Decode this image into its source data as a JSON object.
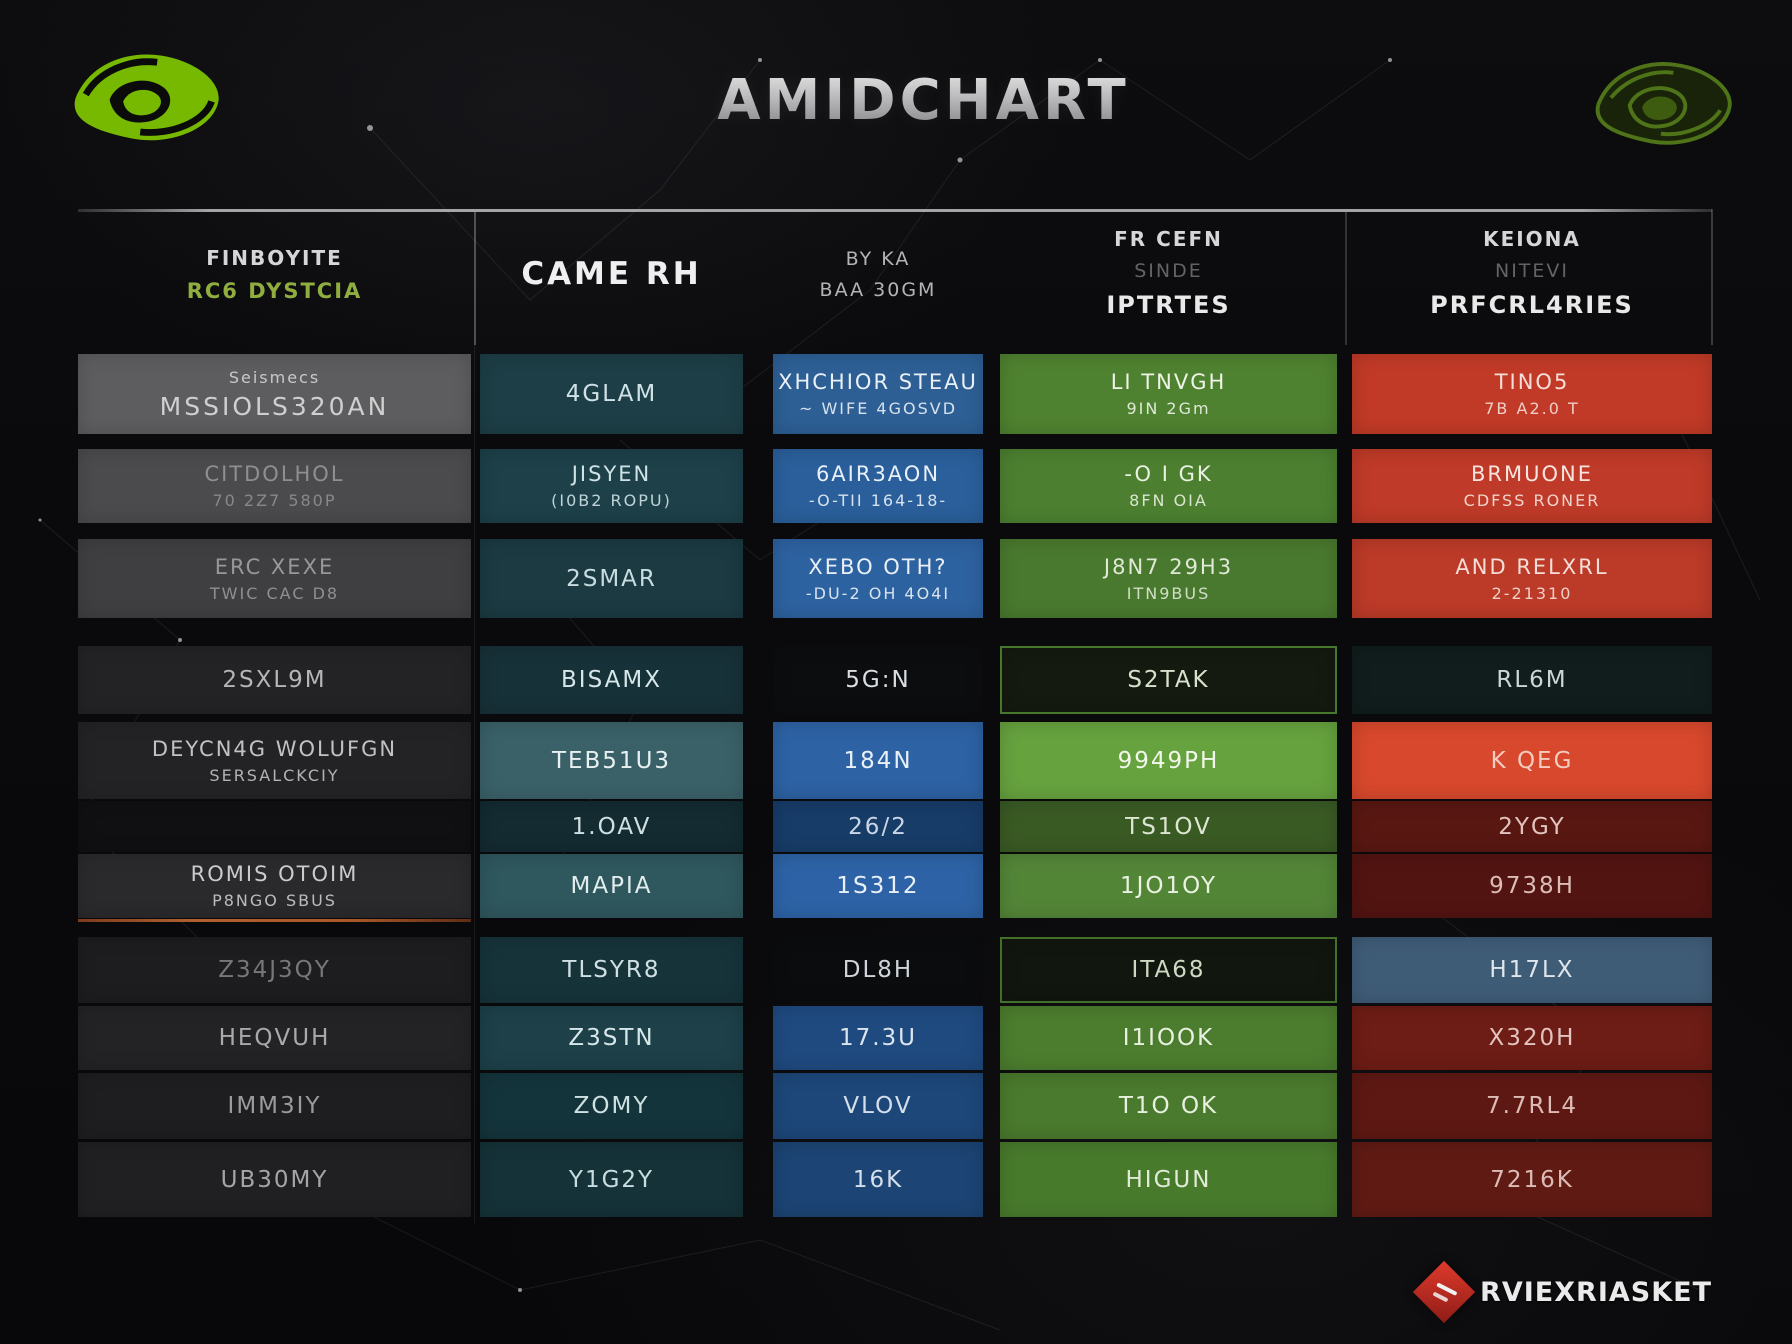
{
  "title": "AMIDCHART",
  "logos": {
    "top_left": "nvidia-eye-logo-green",
    "top_right": "nvidia-eye-logo-dark",
    "footer_icon": "red-diamond-logo"
  },
  "footer": {
    "brand": "RVIEXRIASKET"
  },
  "table": {
    "headers": [
      {
        "lines": [
          {
            "t": "FINBOYITE",
            "cls": "h-white"
          },
          {
            "t": "RC6 DYSTCIA",
            "cls": "h-green"
          }
        ]
      },
      {
        "lines": [
          {
            "t": "CAME RH",
            "cls": "h-big"
          }
        ]
      },
      {
        "lines": [
          {
            "t": "BY KA",
            "cls": "h-gray"
          },
          {
            "t": "BAA 30GM",
            "cls": "h-gray"
          }
        ]
      },
      {
        "lines": [
          {
            "t": "FR CEFN",
            "cls": "h-white"
          },
          {
            "t": "SINDE",
            "cls": "h-dim"
          },
          {
            "t": "IPTRTES",
            "cls": "h-big2"
          }
        ]
      },
      {
        "lines": [
          {
            "t": "KEIONA",
            "cls": "h-white"
          },
          {
            "t": "NITEVI",
            "cls": "h-dim"
          },
          {
            "t": "PRFCRL4RIES",
            "cls": "h-big2"
          }
        ]
      }
    ],
    "cells": [
      {
        "col": 0,
        "row": 0,
        "lines": [
          "Seismecs",
          "MSSIOLS320AN"
        ],
        "bg": "#5d5d60",
        "fg": "#dcdcdc",
        "variant": "first-small"
      },
      {
        "col": 0,
        "row": 1,
        "lines": [
          "CITDOLHOL",
          "70 2Z7 580P"
        ],
        "bg": "#4b4b4e",
        "fg": "#8f8f93"
      },
      {
        "col": 0,
        "row": 2,
        "lines": [
          "ERC XEXE",
          "TWIC CAC D8"
        ],
        "bg": "#3f3f42",
        "fg": "#98989b"
      },
      {
        "col": 0,
        "row": 3,
        "lines": [
          "2SXL9M"
        ],
        "bg": "#232325",
        "fg": "#b5b5b9"
      },
      {
        "col": 0,
        "row": 4,
        "lines": [
          "DEYCN4G WOLUFGN",
          "SERSALCKCIY"
        ],
        "bg": "#232325",
        "fg": "#c2c2c6"
      },
      {
        "col": 0,
        "row": 5,
        "lines": [
          ""
        ],
        "bg": "#101012",
        "fg": "#777"
      },
      {
        "col": 0,
        "row": 6,
        "lines": [
          "ROMIS OTOIM",
          "P8NGO SBUS"
        ],
        "bg": "#2a2a2d",
        "fg": "#cbcbce"
      },
      {
        "col": 0,
        "row": 7,
        "lines": [
          "Z34J3QY"
        ],
        "bg": "#1d1d1f",
        "fg": "#77777b"
      },
      {
        "col": 0,
        "row": 8,
        "lines": [
          "HEQVUH"
        ],
        "bg": "#232326",
        "fg": "#a9a9ad"
      },
      {
        "col": 0,
        "row": 9,
        "lines": [
          "IMM3IY"
        ],
        "bg": "#1e1e21",
        "fg": "#9b9b9f"
      },
      {
        "col": 0,
        "row": 10,
        "lines": [
          "UB30MY"
        ],
        "bg": "#202023",
        "fg": "#a5a5a9"
      },
      {
        "col": 1,
        "row": 0,
        "lines": [
          "4GLAM"
        ],
        "bg": "#1d3e46",
        "fg": "#cfe3e6"
      },
      {
        "col": 1,
        "row": 1,
        "lines": [
          "JISYEN",
          "(I0B2 ROPU)"
        ],
        "bg": "#1d4049",
        "fg": "#cfe3e6"
      },
      {
        "col": 1,
        "row": 2,
        "lines": [
          "2SMAR"
        ],
        "bg": "#1b3a42",
        "fg": "#c8dde0"
      },
      {
        "col": 1,
        "row": 3,
        "lines": [
          "BISAMX"
        ],
        "bg": "#173138",
        "fg": "#d6e7e9"
      },
      {
        "col": 1,
        "row": 4,
        "lines": [
          "TEB51U3"
        ],
        "bg": "#3a6168",
        "fg": "#e8f1f1"
      },
      {
        "col": 1,
        "row": 5,
        "lines": [
          "1.OAV"
        ],
        "bg": "#132b31",
        "fg": "#cfe0e2"
      },
      {
        "col": 1,
        "row": 6,
        "lines": [
          "MAPIA"
        ],
        "bg": "#2f575e",
        "fg": "#e2edee"
      },
      {
        "col": 1,
        "row": 7,
        "lines": [
          "TLSYR8"
        ],
        "bg": "#16333a",
        "fg": "#cfe0e2"
      },
      {
        "col": 1,
        "row": 8,
        "lines": [
          "Z3STN"
        ],
        "bg": "#1d4049",
        "fg": "#d6e7e9"
      },
      {
        "col": 1,
        "row": 9,
        "lines": [
          "ZOMY"
        ],
        "bg": "#14343b",
        "fg": "#cfe0e2"
      },
      {
        "col": 1,
        "row": 10,
        "lines": [
          "Y1G2Y"
        ],
        "bg": "#153238",
        "fg": "#c8dde0"
      },
      {
        "col": 2,
        "row": 0,
        "lines": [
          "XHCHIOR STEAU",
          "~ WIFE 4GOSVD"
        ],
        "bg": "#2d5f95",
        "fg": "#e9f0f7"
      },
      {
        "col": 2,
        "row": 1,
        "lines": [
          "6AIR3AON",
          "-O-TII 164-18-"
        ],
        "bg": "#2a5f9b",
        "fg": "#e9f0f7"
      },
      {
        "col": 2,
        "row": 2,
        "lines": [
          "XEBO OTH?",
          "-DU-2 OH 4O4I"
        ],
        "bg": "#2d62a0",
        "fg": "#e9f0f7"
      },
      {
        "col": 2,
        "row": 3,
        "lines": [
          "5G:N"
        ],
        "bg": "#0c0d0f",
        "fg": "#d8dde2"
      },
      {
        "col": 2,
        "row": 4,
        "lines": [
          "184N"
        ],
        "bg": "#2d62a4",
        "fg": "#e9f0f7"
      },
      {
        "col": 2,
        "row": 5,
        "lines": [
          "26/2"
        ],
        "bg": "#173c68",
        "fg": "#c9d6e6"
      },
      {
        "col": 2,
        "row": 6,
        "lines": [
          "1S312"
        ],
        "bg": "#2d63a6",
        "fg": "#e9f0f7"
      },
      {
        "col": 2,
        "row": 7,
        "lines": [
          "DL8H"
        ],
        "bg": "#0b0c0e",
        "fg": "#cfd4da"
      },
      {
        "col": 2,
        "row": 8,
        "lines": [
          "17.3U"
        ],
        "bg": "#1f4a80",
        "fg": "#dce4ee"
      },
      {
        "col": 2,
        "row": 9,
        "lines": [
          "VLOV"
        ],
        "bg": "#1d4779",
        "fg": "#d5dfeb"
      },
      {
        "col": 2,
        "row": 10,
        "lines": [
          "16K"
        ],
        "bg": "#1c4474",
        "fg": "#d5dfeb"
      },
      {
        "col": 3,
        "row": 0,
        "lines": [
          "LI TNVGH",
          "9IN 2Gm"
        ],
        "bg": "#4f8230",
        "fg": "#eef4e7"
      },
      {
        "col": 3,
        "row": 1,
        "lines": [
          "-O I GK",
          "8FN OIA"
        ],
        "bg": "#4c8030",
        "fg": "#e8f0e0"
      },
      {
        "col": 3,
        "row": 2,
        "lines": [
          "J8N7 29H3",
          "ITN9BUS"
        ],
        "bg": "#49792e",
        "fg": "#dfe9d6"
      },
      {
        "col": 3,
        "row": 3,
        "lines": [
          "S2TAK"
        ],
        "bg": "#141a10",
        "fg": "#d6e2cc",
        "border": "#48772e"
      },
      {
        "col": 3,
        "row": 4,
        "lines": [
          "9949PH"
        ],
        "bg": "#66a23e",
        "fg": "#f2f7ec"
      },
      {
        "col": 3,
        "row": 5,
        "lines": [
          "TS1OV"
        ],
        "bg": "#3a5a24",
        "fg": "#dce6d2"
      },
      {
        "col": 3,
        "row": 6,
        "lines": [
          "1JO1OY"
        ],
        "bg": "#538537",
        "fg": "#eaf2e2"
      },
      {
        "col": 3,
        "row": 7,
        "lines": [
          "ITA68"
        ],
        "bg": "#11160e",
        "fg": "#cdd9c3",
        "border": "#42702a"
      },
      {
        "col": 3,
        "row": 8,
        "lines": [
          "I1IOOK"
        ],
        "bg": "#4c7d2e",
        "fg": "#e8f0e0"
      },
      {
        "col": 3,
        "row": 9,
        "lines": [
          "T1O OK"
        ],
        "bg": "#4a7a2d",
        "fg": "#e8f0e0"
      },
      {
        "col": 3,
        "row": 10,
        "lines": [
          "HIGUN"
        ],
        "bg": "#487a2c",
        "fg": "#e0ead6"
      },
      {
        "col": 4,
        "row": 0,
        "lines": [
          "TINO5",
          "7B A2.0 T"
        ],
        "bg": "#c13a27",
        "fg": "#f6ded8"
      },
      {
        "col": 4,
        "row": 1,
        "lines": [
          "BRMUONE",
          "CDFSS RONER"
        ],
        "bg": "#bf3a28",
        "fg": "#f8e4de"
      },
      {
        "col": 4,
        "row": 2,
        "lines": [
          "AND RELXRL",
          "2-21310"
        ],
        "bg": "#bc3a28",
        "fg": "#f6ded8"
      },
      {
        "col": 4,
        "row": 3,
        "lines": [
          "RL6M"
        ],
        "bg": "#101d1c",
        "fg": "#ccd6d4"
      },
      {
        "col": 4,
        "row": 4,
        "lines": [
          "K QEG"
        ],
        "bg": "#d8482c",
        "fg": "#f3cdbf"
      },
      {
        "col": 4,
        "row": 5,
        "lines": [
          "2YGY"
        ],
        "bg": "#591712",
        "fg": "#e3c3bd"
      },
      {
        "col": 4,
        "row": 6,
        "lines": [
          "9738H"
        ],
        "bg": "#521411",
        "fg": "#ddbcb6"
      },
      {
        "col": 4,
        "row": 7,
        "lines": [
          "H17LX"
        ],
        "bg": "#3f5c77",
        "fg": "#dfe6ec"
      },
      {
        "col": 4,
        "row": 8,
        "lines": [
          "X320H"
        ],
        "bg": "#6d1d15",
        "fg": "#e3c3bd"
      },
      {
        "col": 4,
        "row": 9,
        "lines": [
          "7.7RL4"
        ],
        "bg": "#5e1813",
        "fg": "#ddbcb6"
      },
      {
        "col": 4,
        "row": 10,
        "lines": [
          "7216K"
        ],
        "bg": "#601a14",
        "fg": "#ddbcb6"
      }
    ]
  }
}
